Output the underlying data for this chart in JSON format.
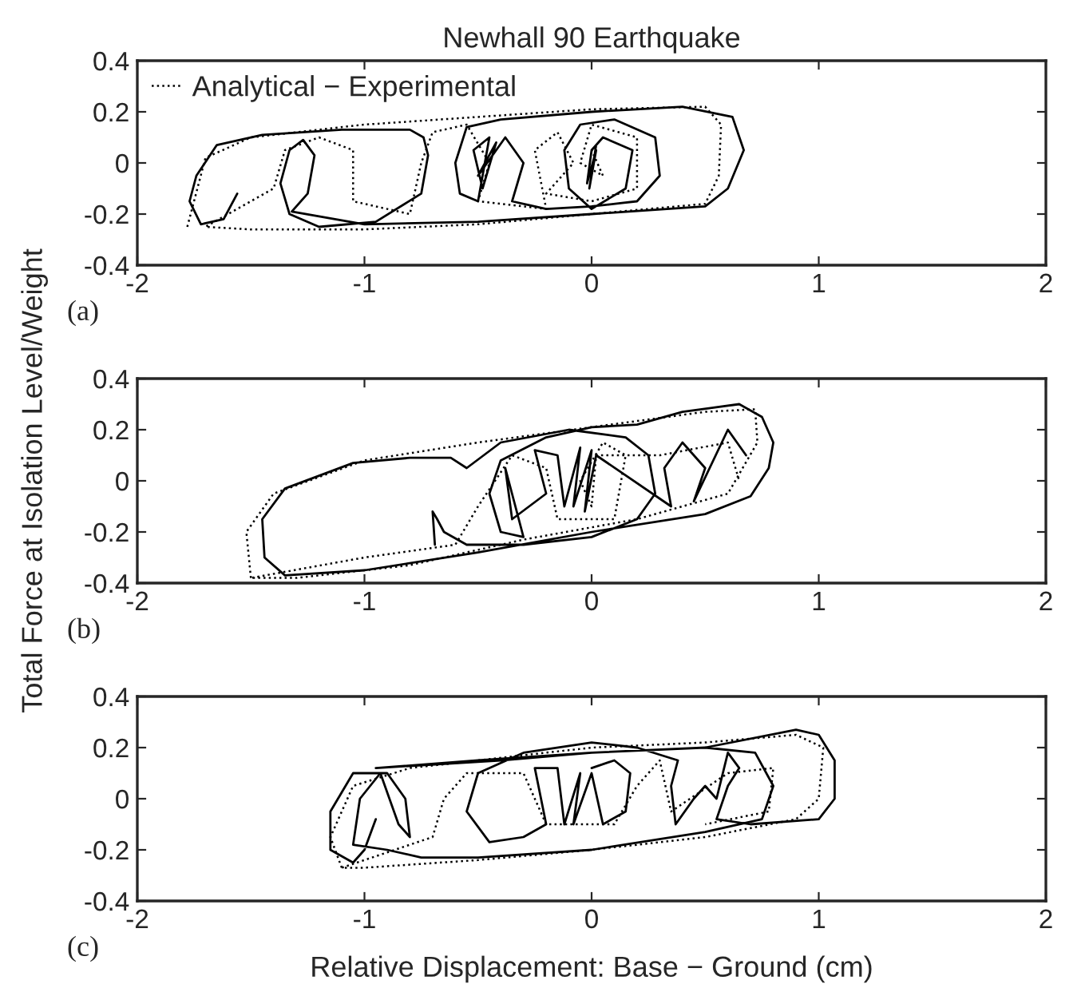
{
  "chart_data": [
    {
      "type": "line",
      "title": "Newhall 90 Earthquake",
      "annotations": [
        "(a)"
      ],
      "xlim": [
        -2,
        2
      ],
      "ylim": [
        -0.4,
        0.4
      ],
      "xticks": [
        -2,
        -1,
        0,
        1,
        2
      ],
      "yticks": [
        -0.4,
        -0.2,
        0,
        0.2,
        0.4
      ],
      "legend": "top left",
      "grid": false,
      "series": [
        {
          "name": "Analytical − Experimental",
          "color": "#000000",
          "line_style": "dotted",
          "x": [
            -1.78,
            -1.7,
            -1.5,
            -1.0,
            -0.5,
            0.0,
            0.5,
            0.57,
            0.56,
            0.5,
            0.0,
            -0.5,
            -1.0,
            -1.5,
            -1.7,
            -1.4,
            -1.35,
            -1.2,
            -1.05,
            -1.05,
            -0.8,
            -0.75,
            -0.7,
            -0.55,
            -0.45,
            -0.5,
            -0.2,
            -0.25,
            -0.15,
            -0.08,
            -0.2,
            0.0,
            0.2,
            0.2,
            0.0,
            -0.05,
            0.05,
            0.0
          ],
          "values": [
            -0.25,
            0.02,
            0.1,
            0.15,
            0.18,
            0.21,
            0.22,
            0.15,
            -0.05,
            -0.16,
            -0.2,
            -0.24,
            -0.26,
            -0.26,
            -0.25,
            -0.1,
            0.05,
            0.1,
            0.05,
            -0.15,
            -0.2,
            0.0,
            0.12,
            0.15,
            0.0,
            -0.15,
            -0.18,
            0.05,
            0.12,
            0.0,
            -0.12,
            -0.15,
            -0.1,
            0.1,
            0.15,
            0.0,
            -0.05,
            0.05
          ]
        },
        {
          "color": "#000000",
          "line_style": "solid",
          "x": [
            -1.56,
            -1.62,
            -1.72,
            -1.77,
            -1.74,
            -1.65,
            -1.45,
            -1.1,
            -0.8,
            -0.74,
            -0.72,
            -0.75,
            -0.95,
            -1.2,
            -1.33,
            -1.37,
            -1.33,
            -1.27,
            -1.22,
            -1.25,
            -1.32,
            -1.0,
            -0.5,
            0.0,
            0.5,
            0.6,
            0.67,
            0.62,
            0.4,
            0.0,
            -0.4,
            -0.55,
            -0.6,
            -0.58,
            -0.5,
            -0.45,
            -0.52,
            -0.48,
            -0.42,
            -0.5,
            -0.38,
            -0.3,
            -0.35,
            -0.2,
            0.0,
            0.2,
            0.3,
            0.28,
            0.1,
            -0.05,
            -0.12,
            -0.1,
            0.0,
            0.15,
            0.18,
            0.05,
            0.0,
            -0.02,
            0.02,
            -0.01,
            0.02
          ],
          "values": [
            -0.12,
            -0.22,
            -0.24,
            -0.15,
            -0.05,
            0.07,
            0.11,
            0.13,
            0.13,
            0.1,
            0.03,
            -0.12,
            -0.23,
            -0.25,
            -0.2,
            -0.08,
            0.05,
            0.09,
            0.03,
            -0.12,
            -0.19,
            -0.24,
            -0.23,
            -0.2,
            -0.17,
            -0.1,
            0.05,
            0.18,
            0.22,
            0.2,
            0.17,
            0.14,
            0.0,
            -0.12,
            -0.15,
            0.1,
            0.05,
            -0.1,
            0.08,
            -0.05,
            0.1,
            0.0,
            -0.15,
            -0.18,
            -0.17,
            -0.15,
            -0.05,
            0.1,
            0.17,
            0.15,
            0.05,
            -0.1,
            -0.18,
            -0.1,
            0.05,
            0.1,
            0.05,
            -0.08,
            0.05,
            -0.1,
            0.07
          ]
        }
      ]
    },
    {
      "type": "line",
      "ylabel": "Total Force at Isolation Level/Weight",
      "annotations": [
        "(b)"
      ],
      "xlim": [
        -2,
        2
      ],
      "ylim": [
        -0.4,
        0.4
      ],
      "xticks": [
        -2,
        -1,
        0,
        1,
        2
      ],
      "yticks": [
        -0.4,
        -0.2,
        0,
        0.2,
        0.4
      ],
      "grid": false,
      "series": [
        {
          "color": "#000000",
          "line_style": "dotted",
          "x": [
            -1.5,
            -1.52,
            -1.4,
            -1.0,
            -0.5,
            0.0,
            0.5,
            0.72,
            0.73,
            0.6,
            0.2,
            -0.3,
            -0.8,
            -1.3,
            -1.5,
            -1.0,
            -0.6,
            -0.5,
            -0.35,
            -0.2,
            -0.15,
            0.1,
            0.15,
            0.05,
            -0.05,
            0.0,
            0.02,
            0.3,
            0.6,
            0.65
          ],
          "values": [
            -0.38,
            -0.2,
            -0.05,
            0.08,
            0.15,
            0.21,
            0.27,
            0.28,
            0.15,
            -0.05,
            -0.15,
            -0.23,
            -0.33,
            -0.38,
            -0.38,
            -0.3,
            -0.25,
            -0.1,
            0.1,
            0.05,
            -0.15,
            -0.15,
            0.1,
            0.15,
            0.0,
            -0.1,
            0.1,
            0.1,
            0.15,
            0.0
          ]
        },
        {
          "color": "#000000",
          "line_style": "solid",
          "x": [
            -0.69,
            -0.7,
            -0.68,
            -0.65,
            -0.55,
            -0.3,
            0.0,
            0.2,
            0.28,
            0.25,
            0.15,
            -0.1,
            -0.4,
            -0.55,
            -0.62,
            -0.8,
            -1.05,
            -1.35,
            -1.45,
            -1.44,
            -1.35,
            -1.0,
            -0.5,
            0.0,
            0.5,
            0.7,
            0.78,
            0.8,
            0.75,
            0.65,
            0.4,
            0.2,
            0.0,
            -0.2,
            -0.4,
            -0.45,
            -0.4,
            -0.3,
            -0.38,
            -0.35,
            -0.2,
            -0.25,
            -0.15,
            -0.12,
            -0.05,
            -0.08,
            0.0,
            -0.03,
            0.02,
            0.35,
            0.32,
            0.4,
            0.5,
            0.45,
            0.6,
            0.68
          ],
          "values": [
            -0.25,
            -0.12,
            -0.15,
            -0.2,
            -0.25,
            -0.25,
            -0.22,
            -0.15,
            -0.05,
            0.1,
            0.17,
            0.2,
            0.15,
            0.05,
            0.09,
            0.09,
            0.07,
            -0.03,
            -0.15,
            -0.3,
            -0.37,
            -0.35,
            -0.28,
            -0.2,
            -0.13,
            -0.06,
            0.05,
            0.15,
            0.25,
            0.3,
            0.27,
            0.22,
            0.21,
            0.17,
            0.08,
            -0.05,
            -0.2,
            -0.22,
            0.05,
            -0.15,
            -0.05,
            0.12,
            0.1,
            -0.1,
            0.13,
            -0.1,
            0.12,
            -0.12,
            0.1,
            -0.1,
            0.05,
            0.15,
            0.05,
            -0.08,
            0.2,
            0.1
          ]
        }
      ]
    },
    {
      "type": "line",
      "xlabel": "Relative Displacement: Base − Ground (cm)",
      "annotations": [
        "(c)"
      ],
      "xlim": [
        -2,
        2
      ],
      "ylim": [
        -0.4,
        0.4
      ],
      "xticks": [
        -2,
        -1,
        0,
        1,
        2
      ],
      "yticks": [
        -0.4,
        -0.2,
        0,
        0.2,
        0.4
      ],
      "grid": false,
      "series": [
        {
          "color": "#000000",
          "line_style": "dotted",
          "x": [
            -1.1,
            -1.15,
            -1.05,
            -0.8,
            -0.3,
            0.0,
            0.5,
            0.9,
            1.02,
            1.0,
            0.9,
            0.5,
            0.0,
            -0.5,
            -1.0,
            -1.1,
            -0.7,
            -0.65,
            -0.55,
            -0.3,
            -0.2,
            0.1,
            0.2,
            0.3,
            0.35,
            0.6,
            0.8,
            0.78,
            0.5
          ],
          "values": [
            -0.27,
            -0.15,
            0.05,
            0.12,
            0.17,
            0.2,
            0.22,
            0.25,
            0.2,
            0.0,
            -0.08,
            -0.15,
            -0.2,
            -0.24,
            -0.27,
            -0.27,
            -0.15,
            0.0,
            0.1,
            0.1,
            -0.1,
            -0.1,
            0.05,
            0.15,
            -0.05,
            0.1,
            0.12,
            -0.05,
            -0.1
          ]
        },
        {
          "color": "#000000",
          "line_style": "solid",
          "x": [
            -0.95,
            -1.0,
            -1.05,
            -1.15,
            -1.15,
            -1.05,
            -0.9,
            -0.82,
            -0.8,
            -0.85,
            -0.93,
            -1.02,
            -1.05,
            -0.9,
            -0.75,
            -0.5,
            0.0,
            0.5,
            0.75,
            0.8,
            0.72,
            0.5,
            0.0,
            -0.5,
            -0.95,
            -0.4,
            0.0,
            0.5,
            0.9,
            1.0,
            1.07,
            1.07,
            1.0,
            0.7,
            0.55,
            0.6,
            0.65,
            0.6,
            0.55,
            0.5,
            0.45,
            0.37,
            0.35,
            0.38,
            0.2,
            0.0,
            -0.3,
            -0.5,
            -0.55,
            -0.45,
            -0.3,
            -0.2,
            -0.25,
            -0.15,
            -0.12,
            -0.05,
            -0.08,
            0.0,
            0.05,
            0.15,
            0.17,
            0.1,
            0.0
          ],
          "values": [
            -0.08,
            -0.2,
            -0.25,
            -0.2,
            -0.05,
            0.1,
            0.1,
            0.0,
            -0.15,
            -0.1,
            0.1,
            0.0,
            -0.18,
            -0.2,
            -0.23,
            -0.23,
            -0.2,
            -0.13,
            -0.08,
            0.05,
            0.18,
            0.2,
            0.18,
            0.15,
            0.12,
            0.15,
            0.18,
            0.2,
            0.27,
            0.25,
            0.15,
            0.0,
            -0.08,
            -0.1,
            -0.08,
            0.05,
            0.12,
            0.18,
            0.0,
            0.05,
            0.0,
            -0.1,
            0.05,
            0.15,
            0.2,
            0.22,
            0.18,
            0.1,
            -0.05,
            -0.17,
            -0.15,
            -0.1,
            0.12,
            0.12,
            -0.1,
            0.1,
            -0.1,
            0.1,
            -0.1,
            -0.05,
            0.1,
            0.15,
            0.12
          ]
        }
      ]
    }
  ]
}
